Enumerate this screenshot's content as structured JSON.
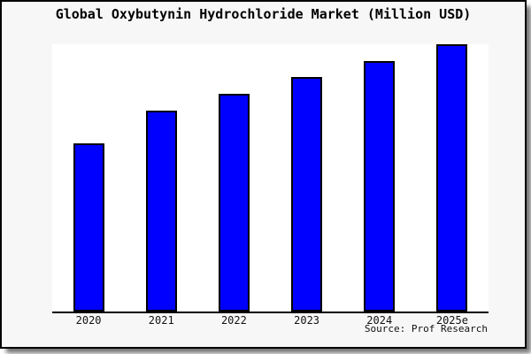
{
  "window": {
    "background_color": "#f7f7f7",
    "plot_background_color": "#ffffff",
    "border_color": "#000000"
  },
  "header": {
    "title": "Global Oxybutynin Hydrochloride Market (Million USD)"
  },
  "footer": {
    "source": "Source: Prof Research"
  },
  "chart_data": {
    "type": "bar",
    "title": "Global Oxybutynin Hydrochloride Market (Million USD)",
    "categories": [
      "2020",
      "2021",
      "2022",
      "2023",
      "2024",
      "2025e"
    ],
    "values": [
      62.9,
      75.2,
      81.5,
      87.7,
      93.6,
      100
    ],
    "xlabel": "",
    "ylabel": "",
    "ylim": [
      0,
      100
    ],
    "grid": false,
    "legend": false,
    "y_axis_ticks_visible": false,
    "bar_color": "#0000ff",
    "bar_border_color": "#000000",
    "source": "Source: Prof Research",
    "note": "No y-axis scale is shown in the image; values are bar heights as percent of the tallest bar (2025e = 100)."
  }
}
